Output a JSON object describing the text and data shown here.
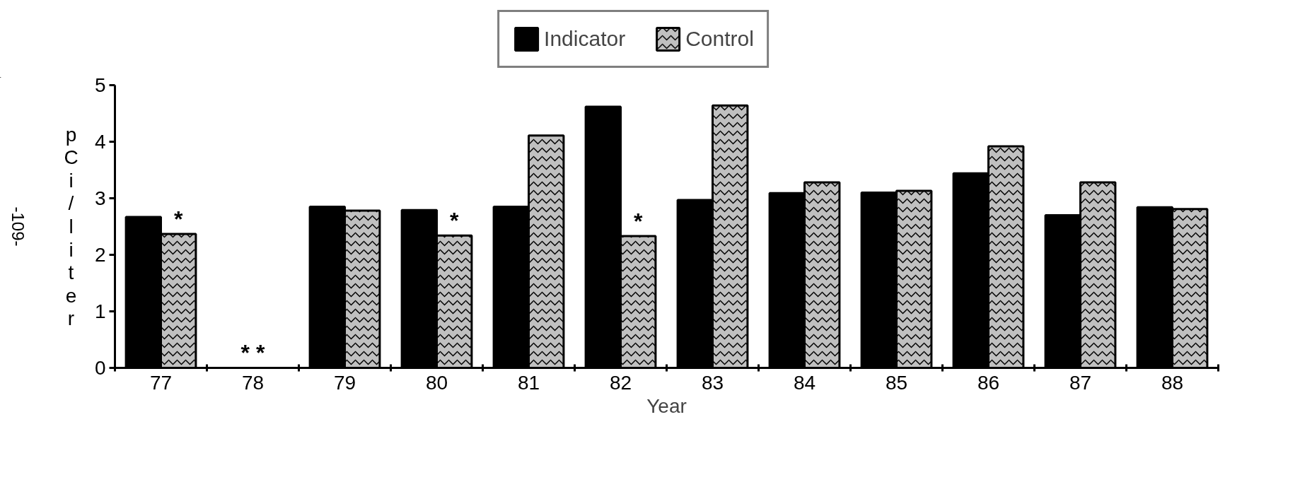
{
  "chart_data": {
    "type": "bar",
    "xlabel": "Year",
    "ylabel": "pCi/liter",
    "categories": [
      "77",
      "78",
      "79",
      "80",
      "81",
      "82",
      "83",
      "84",
      "85",
      "86",
      "87",
      "88"
    ],
    "series": [
      {
        "name": "Indicator",
        "color": "#000000",
        "values": [
          2.67,
          null,
          2.85,
          2.79,
          2.85,
          4.62,
          2.97,
          3.09,
          3.1,
          3.44,
          2.7,
          2.84
        ]
      },
      {
        "name": "Control",
        "color": "#c0c0c0",
        "values": [
          2.37,
          null,
          2.78,
          2.34,
          4.11,
          2.33,
          4.64,
          3.28,
          3.13,
          3.92,
          3.28,
          2.81
        ]
      }
    ],
    "ylim": [
      0,
      5
    ],
    "yticks": [
      0,
      1,
      2,
      3,
      4,
      5
    ],
    "grid": false,
    "legend": "top",
    "annotations": [
      {
        "text": "*",
        "x": "77",
        "y": 2.37
      },
      "* *",
      {
        "text": "*",
        "x": "80",
        "y": 2.34
      },
      {
        "text": "*",
        "x": "82",
        "y": 2.33
      },
      "-109-"
    ]
  }
}
